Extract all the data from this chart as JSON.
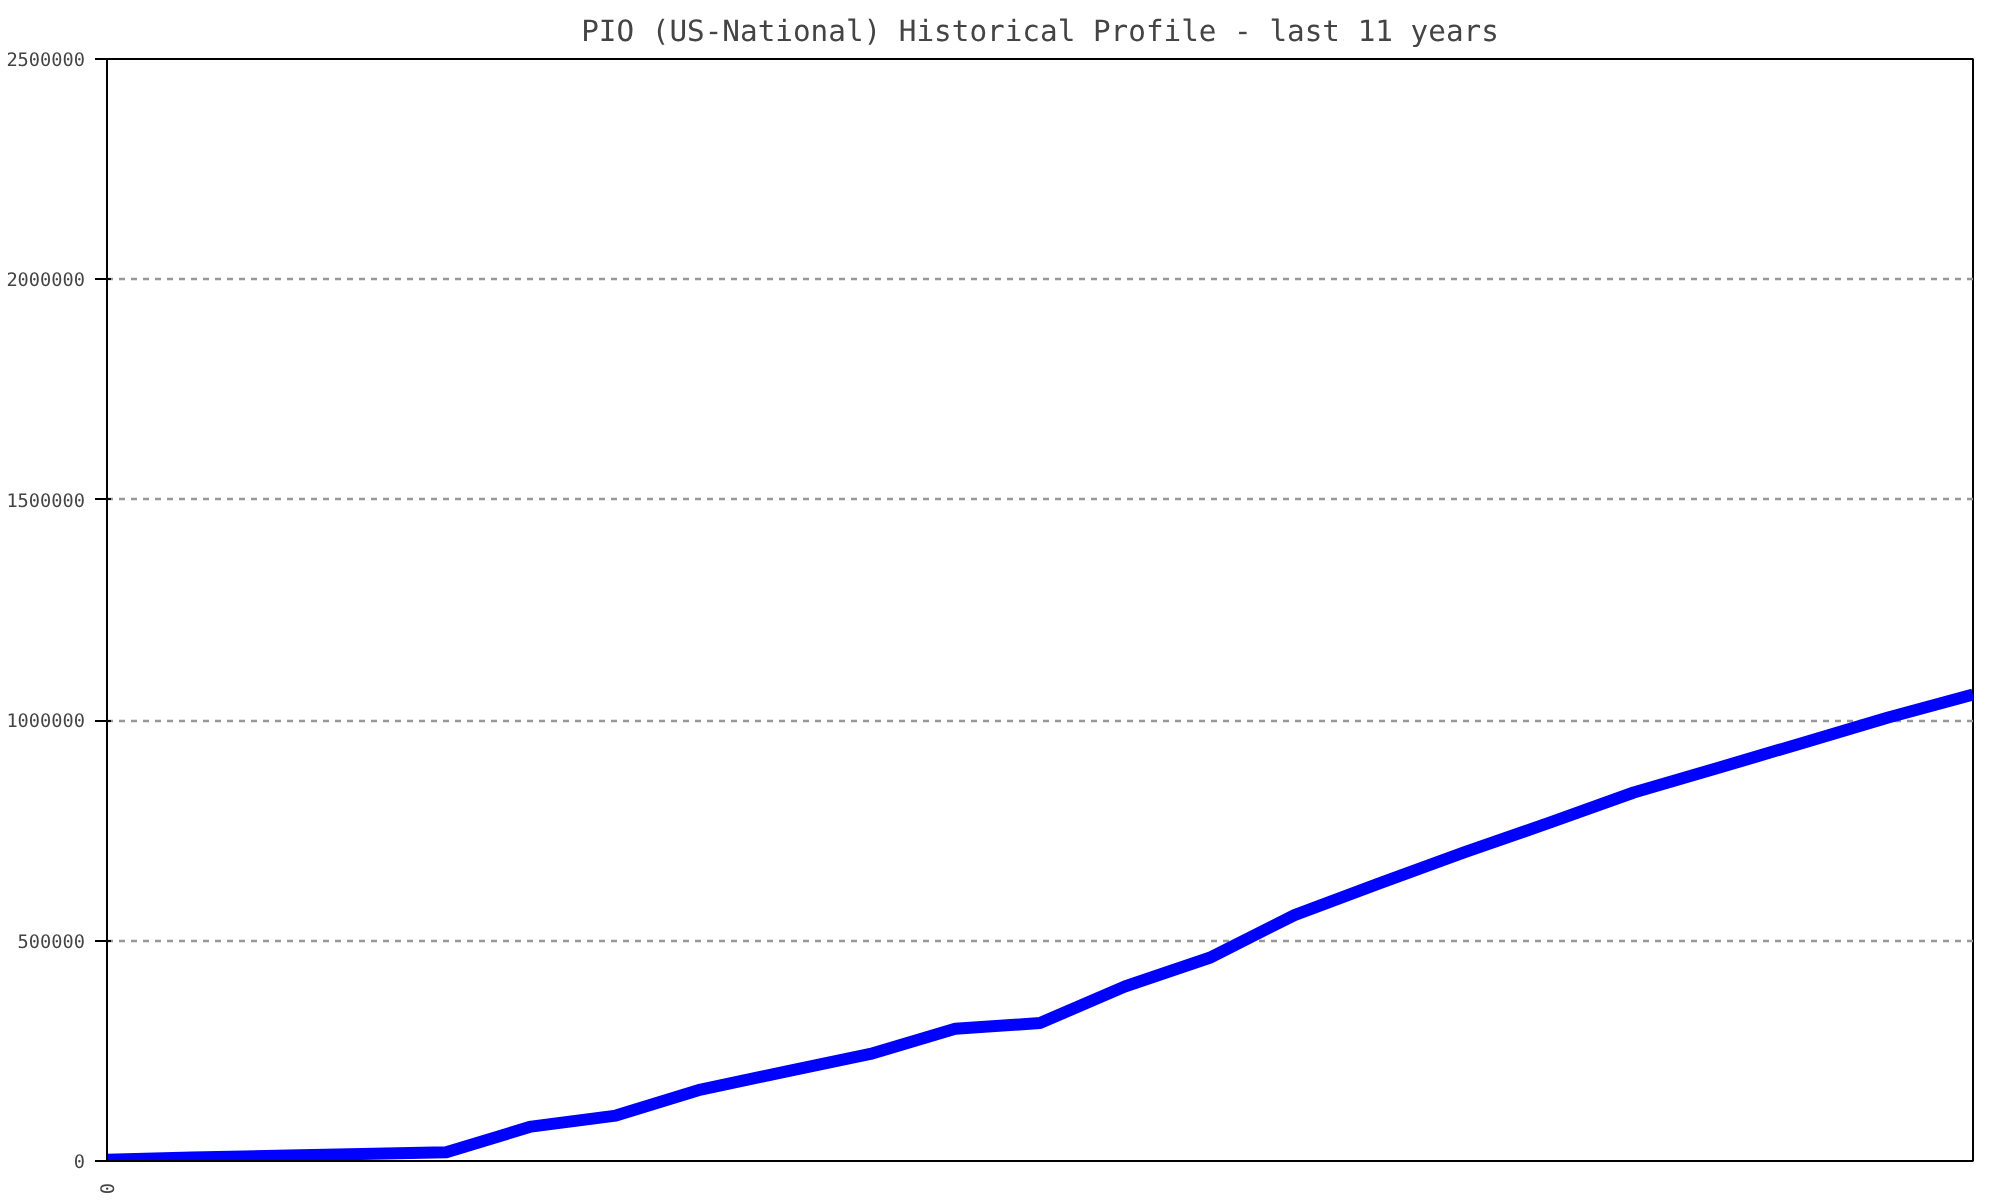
{
  "chart_data": {
    "type": "line",
    "title": "PIO (US-National) Historical Profile - last 11 years",
    "categories": [
      null,
      null,
      null,
      null,
      null,
      null,
      null,
      null,
      null,
      null,
      null,
      null,
      null,
      null,
      null,
      null,
      null,
      null,
      null,
      null,
      null,
      null,
      null
    ],
    "series": [
      {
        "color": "#0000ff",
        "values": [
          3000,
          8000,
          12000,
          16000,
          20000,
          78000,
          103000,
          162000,
          203000,
          243000,
          300000,
          313000,
          396000,
          461000,
          558000,
          630000,
          700000,
          767000,
          836000,
          892000,
          949000,
          1006000,
          1058000
        ]
      }
    ],
    "annotations": [
      "0"
    ],
    "ylim": [
      0,
      2500000
    ],
    "yticks": [
      0,
      500000,
      1000000,
      1500000,
      2000000,
      2500000
    ],
    "grid": "y",
    "line_style": "solid",
    "marker": "none"
  }
}
